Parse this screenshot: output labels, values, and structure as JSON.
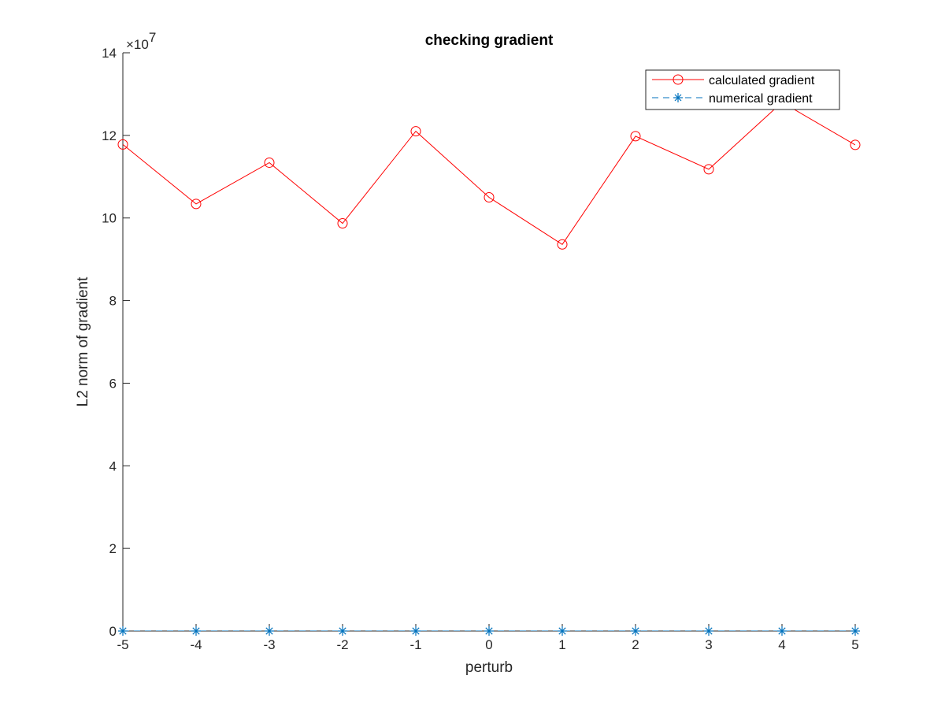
{
  "chart_data": {
    "type": "line",
    "title": "checking gradient",
    "xlabel": "perturb",
    "ylabel": "L2 norm of gradient",
    "x": [
      -5,
      -4,
      -3,
      -2,
      -1,
      0,
      1,
      2,
      3,
      4,
      5
    ],
    "xlim": [
      -5,
      5
    ],
    "ylim": [
      0,
      14
    ],
    "x_ticks": [
      "-5",
      "-4",
      "-3",
      "-2",
      "-1",
      "0",
      "1",
      "2",
      "3",
      "4",
      "5"
    ],
    "y_ticks": [
      "0",
      "2",
      "4",
      "6",
      "8",
      "10",
      "12",
      "14"
    ],
    "y_tick_values": [
      0,
      2,
      4,
      6,
      8,
      10,
      12,
      14
    ],
    "y_exponent_base": "×10",
    "y_exponent_power": "7",
    "grid": false,
    "legend_position": "top-right",
    "series": [
      {
        "name": "calculated gradient",
        "color": "#ff0000",
        "marker": "circle",
        "line": "solid",
        "values": [
          11.78,
          10.34,
          11.34,
          9.87,
          12.1,
          10.5,
          9.36,
          11.98,
          11.18,
          12.8,
          11.77
        ]
      },
      {
        "name": "numerical gradient",
        "color": "#0072bd",
        "marker": "star",
        "line": "dashed",
        "values": [
          0,
          0,
          0,
          0,
          0,
          0,
          0,
          0,
          0,
          0,
          0
        ]
      }
    ]
  }
}
